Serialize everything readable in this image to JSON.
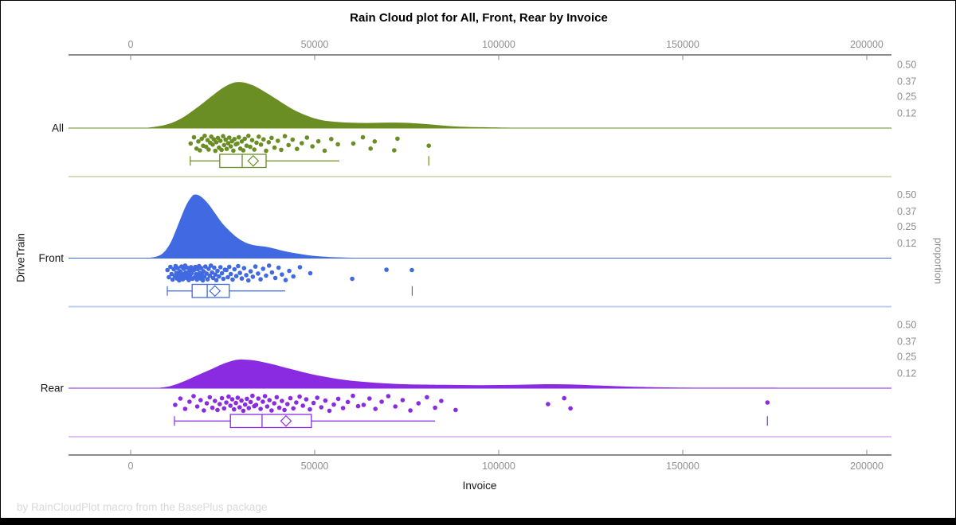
{
  "chart_data": {
    "type": "raincloud",
    "title": "Rain Cloud plot for All, Front, Rear by Invoice",
    "footnote": "by RainCloudPlot macro from the BasePlus package",
    "x_axis": {
      "label": "Invoice",
      "ticks": [
        0,
        50000,
        100000,
        150000,
        200000
      ],
      "range": [
        -17000,
        207000
      ]
    },
    "y_axis_label": "DriveTrain",
    "right_axis_label": "proportion",
    "proportion_ticks": [
      "0.50",
      "0.37",
      "0.25",
      "0.12"
    ],
    "proportion_range": [
      0,
      0.56
    ],
    "legend": "none",
    "grid": "off",
    "groups": [
      {
        "label": "All",
        "color": "#6a8e23",
        "separator_color": "#d4ddba",
        "box": {
          "min": 16200,
          "q1": 24200,
          "median": 30300,
          "mean": 33300,
          "q3": 36800,
          "max": 56700,
          "far_value": 81000
        },
        "density": [
          [
            3000,
            0
          ],
          [
            6000,
            0.008
          ],
          [
            10000,
            0.03
          ],
          [
            14000,
            0.08
          ],
          [
            18000,
            0.16
          ],
          [
            22000,
            0.25
          ],
          [
            25000,
            0.315
          ],
          [
            27500,
            0.352
          ],
          [
            29500,
            0.362
          ],
          [
            31500,
            0.353
          ],
          [
            34000,
            0.325
          ],
          [
            37000,
            0.275
          ],
          [
            40000,
            0.22
          ],
          [
            43000,
            0.165
          ],
          [
            46000,
            0.12
          ],
          [
            49000,
            0.085
          ],
          [
            52000,
            0.062
          ],
          [
            56000,
            0.048
          ],
          [
            60000,
            0.042
          ],
          [
            64000,
            0.04
          ],
          [
            68000,
            0.042
          ],
          [
            72000,
            0.043
          ],
          [
            76000,
            0.04
          ],
          [
            80000,
            0.032
          ],
          [
            84000,
            0.022
          ],
          [
            88000,
            0.013
          ],
          [
            92000,
            0.009
          ],
          [
            100000,
            0.005
          ],
          [
            108000,
            0.002
          ],
          [
            115000,
            0
          ]
        ],
        "rain_x_k": [
          16.3,
          17.2,
          17.9,
          18.4,
          18.8,
          19.3,
          19.7,
          20.1,
          20.5,
          20.9,
          21.2,
          21.6,
          21.9,
          22.3,
          22.6,
          23.0,
          23.3,
          23.7,
          24.0,
          24.4,
          24.7,
          25.1,
          25.4,
          25.8,
          26.1,
          26.5,
          26.8,
          27.2,
          27.5,
          27.9,
          28.2,
          28.6,
          29.0,
          29.4,
          29.8,
          30.2,
          30.6,
          31.0,
          31.5,
          32.0,
          32.5,
          33.0,
          33.6,
          34.2,
          34.8,
          35.4,
          36.1,
          36.8,
          37.5,
          38.3,
          39.1,
          40.0,
          40.9,
          41.9,
          42.9,
          44.0,
          45.2,
          46.5,
          47.9,
          49.4,
          51.0,
          52.7,
          54.5,
          56.3,
          60.5,
          63.1,
          65.2,
          66.3,
          71.6,
          72.5,
          81.0
        ],
        "rain_jitter": [
          0.52,
          0.13,
          0.84,
          0.39,
          0.95,
          0.22,
          0.66,
          0.04,
          0.73,
          0.31,
          0.9,
          0.47,
          0.09,
          0.59,
          0.26,
          0.98,
          0.44,
          0.17,
          0.78,
          0.35,
          0.92,
          0.06,
          0.62,
          0.28,
          0.86,
          0.5,
          0.15,
          0.7,
          0.38,
          0.97,
          0.24,
          0.57
        ]
      },
      {
        "label": "Front",
        "color": "#4169e1",
        "separator_color": "#bccdf1",
        "box": {
          "min": 9960,
          "q1": 16700,
          "median": 20800,
          "mean": 22900,
          "q3": 26800,
          "max": 42000,
          "far_value": 76500
        },
        "density": [
          [
            4000,
            0
          ],
          [
            7000,
            0.012
          ],
          [
            9000,
            0.045
          ],
          [
            11000,
            0.13
          ],
          [
            13000,
            0.27
          ],
          [
            15000,
            0.41
          ],
          [
            16500,
            0.48
          ],
          [
            17500,
            0.5
          ],
          [
            19000,
            0.485
          ],
          [
            21000,
            0.43
          ],
          [
            23000,
            0.35
          ],
          [
            25000,
            0.27
          ],
          [
            27000,
            0.21
          ],
          [
            29000,
            0.16
          ],
          [
            31000,
            0.125
          ],
          [
            33000,
            0.105
          ],
          [
            35000,
            0.095
          ],
          [
            37000,
            0.088
          ],
          [
            39000,
            0.075
          ],
          [
            41000,
            0.06
          ],
          [
            44000,
            0.042
          ],
          [
            47000,
            0.028
          ],
          [
            50000,
            0.017
          ],
          [
            54000,
            0.009
          ],
          [
            58000,
            0.005
          ],
          [
            63000,
            0.0025
          ],
          [
            68000,
            0.001
          ],
          [
            74000,
            0
          ]
        ],
        "rain_x_k": [
          10.0,
          10.4,
          10.8,
          11.1,
          11.4,
          11.7,
          12.0,
          12.2,
          12.4,
          12.6,
          12.8,
          13.0,
          13.2,
          13.4,
          13.6,
          13.8,
          14.0,
          14.2,
          14.4,
          14.6,
          14.8,
          15.0,
          15.2,
          15.4,
          15.6,
          15.8,
          16.0,
          16.2,
          16.4,
          16.6,
          16.8,
          17.0,
          17.2,
          17.4,
          17.6,
          17.8,
          18.0,
          18.2,
          18.4,
          18.6,
          18.8,
          19.0,
          19.2,
          19.4,
          19.6,
          19.8,
          20.0,
          20.3,
          20.6,
          20.9,
          21.2,
          21.5,
          21.8,
          22.1,
          22.4,
          22.7,
          23.0,
          23.3,
          23.6,
          24.0,
          24.4,
          24.8,
          25.2,
          25.6,
          26.0,
          26.4,
          26.8,
          27.2,
          27.7,
          28.2,
          28.7,
          29.2,
          29.7,
          30.2,
          30.8,
          31.4,
          32.0,
          32.6,
          33.2,
          33.9,
          34.6,
          35.3,
          36.0,
          36.8,
          37.6,
          38.4,
          39.3,
          40.2,
          41.1,
          42.1,
          43.1,
          44.2,
          46.0,
          48.8,
          60.2,
          69.5,
          76.4
        ],
        "rain_jitter": [
          0.3,
          0.75,
          0.1,
          0.55,
          0.9,
          0.25,
          0.68,
          0.05,
          0.48,
          0.83,
          0.18,
          0.62,
          0.95,
          0.38,
          0.72,
          0.08,
          0.52,
          0.88,
          0.22,
          0.65,
          0.02,
          0.45,
          0.8,
          0.15,
          0.58,
          0.93,
          0.35,
          0.7,
          0.12,
          0.5,
          0.85,
          0.28
        ]
      },
      {
        "label": "Rear",
        "color": "#8a2be2",
        "separator_color": "#dcc2f4",
        "box": {
          "min": 11900,
          "q1": 27100,
          "median": 35700,
          "mean": 42200,
          "q3": 49100,
          "max": 82700,
          "far_value": 173000
        },
        "density": [
          [
            7000,
            0
          ],
          [
            11000,
            0.018
          ],
          [
            15000,
            0.06
          ],
          [
            18000,
            0.1
          ],
          [
            22000,
            0.15
          ],
          [
            25000,
            0.19
          ],
          [
            28000,
            0.218
          ],
          [
            30000,
            0.225
          ],
          [
            33000,
            0.22
          ],
          [
            36000,
            0.205
          ],
          [
            39000,
            0.185
          ],
          [
            42000,
            0.162
          ],
          [
            45000,
            0.14
          ],
          [
            48000,
            0.118
          ],
          [
            52000,
            0.094
          ],
          [
            56000,
            0.074
          ],
          [
            60000,
            0.059
          ],
          [
            64000,
            0.048
          ],
          [
            68000,
            0.04
          ],
          [
            72000,
            0.034
          ],
          [
            76000,
            0.03
          ],
          [
            80000,
            0.028
          ],
          [
            85000,
            0.026
          ],
          [
            90000,
            0.025
          ],
          [
            95000,
            0.024
          ],
          [
            100000,
            0.025
          ],
          [
            105000,
            0.027
          ],
          [
            110000,
            0.03
          ],
          [
            115000,
            0.031
          ],
          [
            120000,
            0.029
          ],
          [
            125000,
            0.024
          ],
          [
            130000,
            0.018
          ],
          [
            136000,
            0.012
          ],
          [
            142000,
            0.008
          ],
          [
            150000,
            0.005
          ],
          [
            158000,
            0.004
          ],
          [
            166000,
            0.004
          ],
          [
            172000,
            0.004
          ],
          [
            178000,
            0.003
          ],
          [
            185000,
            0.0015
          ],
          [
            193000,
            0.0005
          ],
          [
            205000,
            0
          ]
        ],
        "rain_x_k": [
          12.1,
          13.5,
          14.8,
          16.0,
          17.1,
          18.1,
          19.0,
          19.9,
          20.7,
          21.5,
          22.2,
          22.9,
          23.6,
          24.2,
          24.8,
          25.4,
          26.0,
          26.6,
          27.1,
          27.6,
          28.1,
          28.6,
          29.1,
          29.6,
          30.1,
          30.6,
          31.1,
          31.6,
          32.1,
          32.6,
          33.1,
          33.6,
          34.1,
          34.7,
          35.3,
          35.9,
          36.5,
          37.1,
          37.7,
          38.3,
          39.0,
          39.7,
          40.4,
          41.1,
          41.8,
          42.6,
          43.4,
          44.2,
          45.0,
          45.9,
          46.8,
          47.7,
          48.7,
          49.7,
          50.7,
          51.8,
          52.9,
          54.0,
          55.2,
          56.4,
          57.7,
          59.0,
          60.4,
          61.8,
          63.3,
          64.9,
          66.5,
          68.2,
          70.0,
          71.9,
          73.9,
          76.0,
          78.2,
          80.5,
          82.7,
          84.4,
          88.3,
          113.4,
          117.8,
          119.5,
          173.0
        ],
        "rain_jitter": [
          0.6,
          0.2,
          0.85,
          0.4,
          0.05,
          0.7,
          0.3,
          0.95,
          0.5,
          0.12,
          0.78,
          0.35,
          0.92,
          0.55,
          0.18,
          0.82,
          0.45,
          0.08,
          0.65,
          0.25,
          0.88,
          0.48,
          0.15,
          0.75,
          0.33,
          0.97,
          0.58,
          0.22,
          0.8,
          0.42,
          0.03,
          0.68
        ]
      }
    ]
  }
}
